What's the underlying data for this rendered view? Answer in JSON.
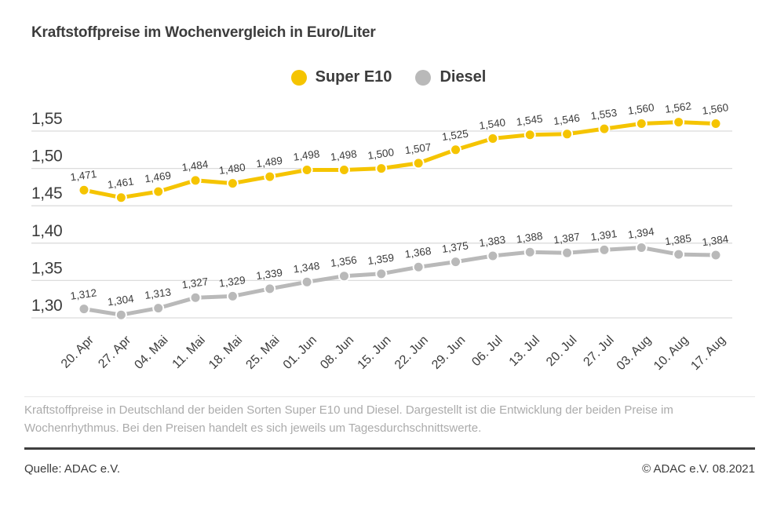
{
  "title": "Kraftstoffpreise im Wochenvergleich in Euro/Liter",
  "chart_data": {
    "type": "line",
    "title": "Kraftstoffpreise im Wochenvergleich in Euro/Liter",
    "categories": [
      "20. Apr",
      "27. Apr",
      "04. Mai",
      "11. Mai",
      "18. Mai",
      "25. Mai",
      "01. Jun",
      "08. Jun",
      "15. Jun",
      "22. Jun",
      "29. Jun",
      "06. Jul",
      "13. Jul",
      "20. Jul",
      "27. Jul",
      "03. Aug",
      "10. Aug",
      "17. Aug"
    ],
    "series": [
      {
        "name": "Super E10",
        "color": "#F5C400",
        "values": [
          1.471,
          1.461,
          1.469,
          1.484,
          1.48,
          1.489,
          1.498,
          1.498,
          1.5,
          1.507,
          1.525,
          1.54,
          1.545,
          1.546,
          1.553,
          1.56,
          1.562,
          1.56
        ]
      },
      {
        "name": "Diesel",
        "color": "#B9B9B9",
        "values": [
          1.312,
          1.304,
          1.313,
          1.327,
          1.329,
          1.339,
          1.348,
          1.356,
          1.359,
          1.368,
          1.375,
          1.383,
          1.388,
          1.387,
          1.391,
          1.394,
          1.385,
          1.384
        ]
      }
    ],
    "xlabel": "",
    "ylabel": "",
    "ylim": [
      1.3,
      1.55
    ],
    "yticks": [
      1.55,
      1.5,
      1.45,
      1.4,
      1.35,
      1.3
    ],
    "grid": true,
    "legend_position": "top-center",
    "decimal_separator": ",",
    "value_decimals": 3,
    "tick_decimals": 2,
    "data_labels": true
  },
  "legend": {
    "items": [
      {
        "label": "Super E10"
      },
      {
        "label": "Diesel"
      }
    ]
  },
  "caption": "Kraftstoffpreise in Deutschland der beiden Sorten Super E10 und Diesel. Dargestellt ist die Entwicklung der beiden Preise im Wochenrhythmus. Bei den Preisen handelt es sich jeweils um Tagesdurchschnittswerte.",
  "footer": {
    "source": "Quelle: ADAC e.V.",
    "copyright": "© ADAC e.V. 08.2021"
  },
  "colors": {
    "accent_yellow": "#F5C400",
    "series_gray": "#B9B9B9",
    "grid": "#DCDCDC",
    "text": "#3C3C3C",
    "caption": "#ABABAB",
    "divider_dark": "#3F3F3F"
  }
}
